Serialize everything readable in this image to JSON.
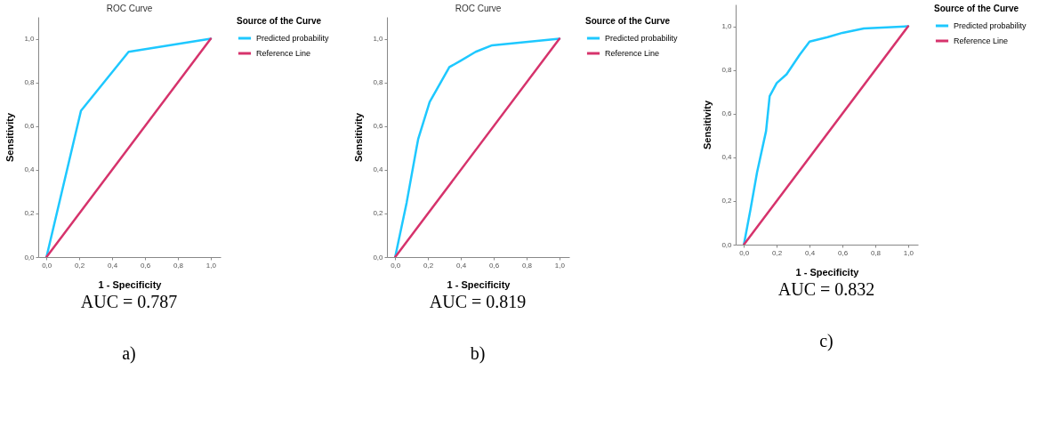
{
  "chart_data": [
    {
      "type": "line",
      "title": "ROC Curve",
      "xlabel": "1 - Specificity",
      "ylabel": "Sensitivity",
      "legend_title": "Source of the Curve",
      "legend": "right",
      "grid": false,
      "xlim": [
        -0.05,
        1.06
      ],
      "ylim": [
        0,
        1.1
      ],
      "xticks": [
        {
          "value": 0,
          "label": "0,0"
        },
        {
          "value": 0.2,
          "label": "0,2"
        },
        {
          "value": 0.4,
          "label": "0,4"
        },
        {
          "value": 0.6,
          "label": "0,6"
        },
        {
          "value": 0.8,
          "label": "0,8"
        },
        {
          "value": 1,
          "label": "1,0"
        }
      ],
      "yticks": [
        {
          "value": 0,
          "label": "0,0"
        },
        {
          "value": 0.2,
          "label": "0,2"
        },
        {
          "value": 0.4,
          "label": "0,4"
        },
        {
          "value": 0.6,
          "label": "0,6"
        },
        {
          "value": 0.8,
          "label": "0,8"
        },
        {
          "value": 1,
          "label": "1,0"
        }
      ],
      "series": [
        {
          "name": "Predicted probability",
          "color": "#1ec8ff",
          "x": [
            0,
            0.21,
            0.5,
            1
          ],
          "values": [
            0,
            0.67,
            0.94,
            1
          ]
        },
        {
          "name": "Reference Line",
          "color": "#d6336c",
          "x": [
            0,
            1
          ],
          "values": [
            0,
            1
          ]
        }
      ],
      "annotations": [
        "AUC = 0.787",
        "a)"
      ]
    },
    {
      "type": "line",
      "title": "ROC Curve",
      "xlabel": "1 - Specificity",
      "ylabel": "Sensitivity",
      "legend_title": "Source of the Curve",
      "legend": "right",
      "grid": false,
      "xlim": [
        -0.05,
        1.06
      ],
      "ylim": [
        0,
        1.1
      ],
      "xticks": [
        {
          "value": 0,
          "label": "0,0"
        },
        {
          "value": 0.2,
          "label": "0,2"
        },
        {
          "value": 0.4,
          "label": "0,4"
        },
        {
          "value": 0.6,
          "label": "0,6"
        },
        {
          "value": 0.8,
          "label": "0,8"
        },
        {
          "value": 1,
          "label": "1,0"
        }
      ],
      "yticks": [
        {
          "value": 0,
          "label": "0,0"
        },
        {
          "value": 0.2,
          "label": "0,2"
        },
        {
          "value": 0.4,
          "label": "0,4"
        },
        {
          "value": 0.6,
          "label": "0,6"
        },
        {
          "value": 0.8,
          "label": "0,8"
        },
        {
          "value": 1,
          "label": "1,0"
        }
      ],
      "series": [
        {
          "name": "Predicted probability",
          "color": "#1ec8ff",
          "x": [
            0,
            0.07,
            0.13,
            0.14,
            0.21,
            0.33,
            0.4,
            0.49,
            0.59,
            1
          ],
          "values": [
            0,
            0.25,
            0.5,
            0.54,
            0.71,
            0.87,
            0.9,
            0.94,
            0.97,
            1
          ]
        },
        {
          "name": "Reference Line",
          "color": "#d6336c",
          "x": [
            0,
            1
          ],
          "values": [
            0,
            1
          ]
        }
      ],
      "annotations": [
        "AUC = 0.819",
        "b)"
      ]
    },
    {
      "type": "line",
      "xlabel": "1 - Specificity",
      "ylabel": "Sensitivity",
      "legend_title": "Source of the Curve",
      "legend": "right",
      "grid": false,
      "xlim": [
        -0.05,
        1.06
      ],
      "ylim": [
        0,
        1.1
      ],
      "xticks": [
        {
          "value": 0,
          "label": "0,0"
        },
        {
          "value": 0.2,
          "label": "0,2"
        },
        {
          "value": 0.4,
          "label": "0,4"
        },
        {
          "value": 0.6,
          "label": "0,6"
        },
        {
          "value": 0.8,
          "label": "0,8"
        },
        {
          "value": 1,
          "label": "1,0"
        }
      ],
      "yticks": [
        {
          "value": 0,
          "label": "0,0"
        },
        {
          "value": 0.2,
          "label": "0,2"
        },
        {
          "value": 0.4,
          "label": "0,4"
        },
        {
          "value": 0.6,
          "label": "0,6"
        },
        {
          "value": 0.8,
          "label": "0,8"
        },
        {
          "value": 1,
          "label": "1,0"
        }
      ],
      "series": [
        {
          "name": "Predicted probability",
          "color": "#1ec8ff",
          "x": [
            0,
            0.04,
            0.08,
            0.135,
            0.157,
            0.2,
            0.26,
            0.34,
            0.4,
            0.51,
            0.6,
            0.73,
            1
          ],
          "values": [
            0,
            0.16,
            0.33,
            0.52,
            0.68,
            0.74,
            0.78,
            0.87,
            0.93,
            0.95,
            0.97,
            0.99,
            1
          ]
        },
        {
          "name": "Reference Line",
          "color": "#d6336c",
          "x": [
            0,
            1
          ],
          "values": [
            0,
            1
          ]
        }
      ],
      "annotations": [
        "AUC = 0.832",
        "c)"
      ]
    }
  ]
}
